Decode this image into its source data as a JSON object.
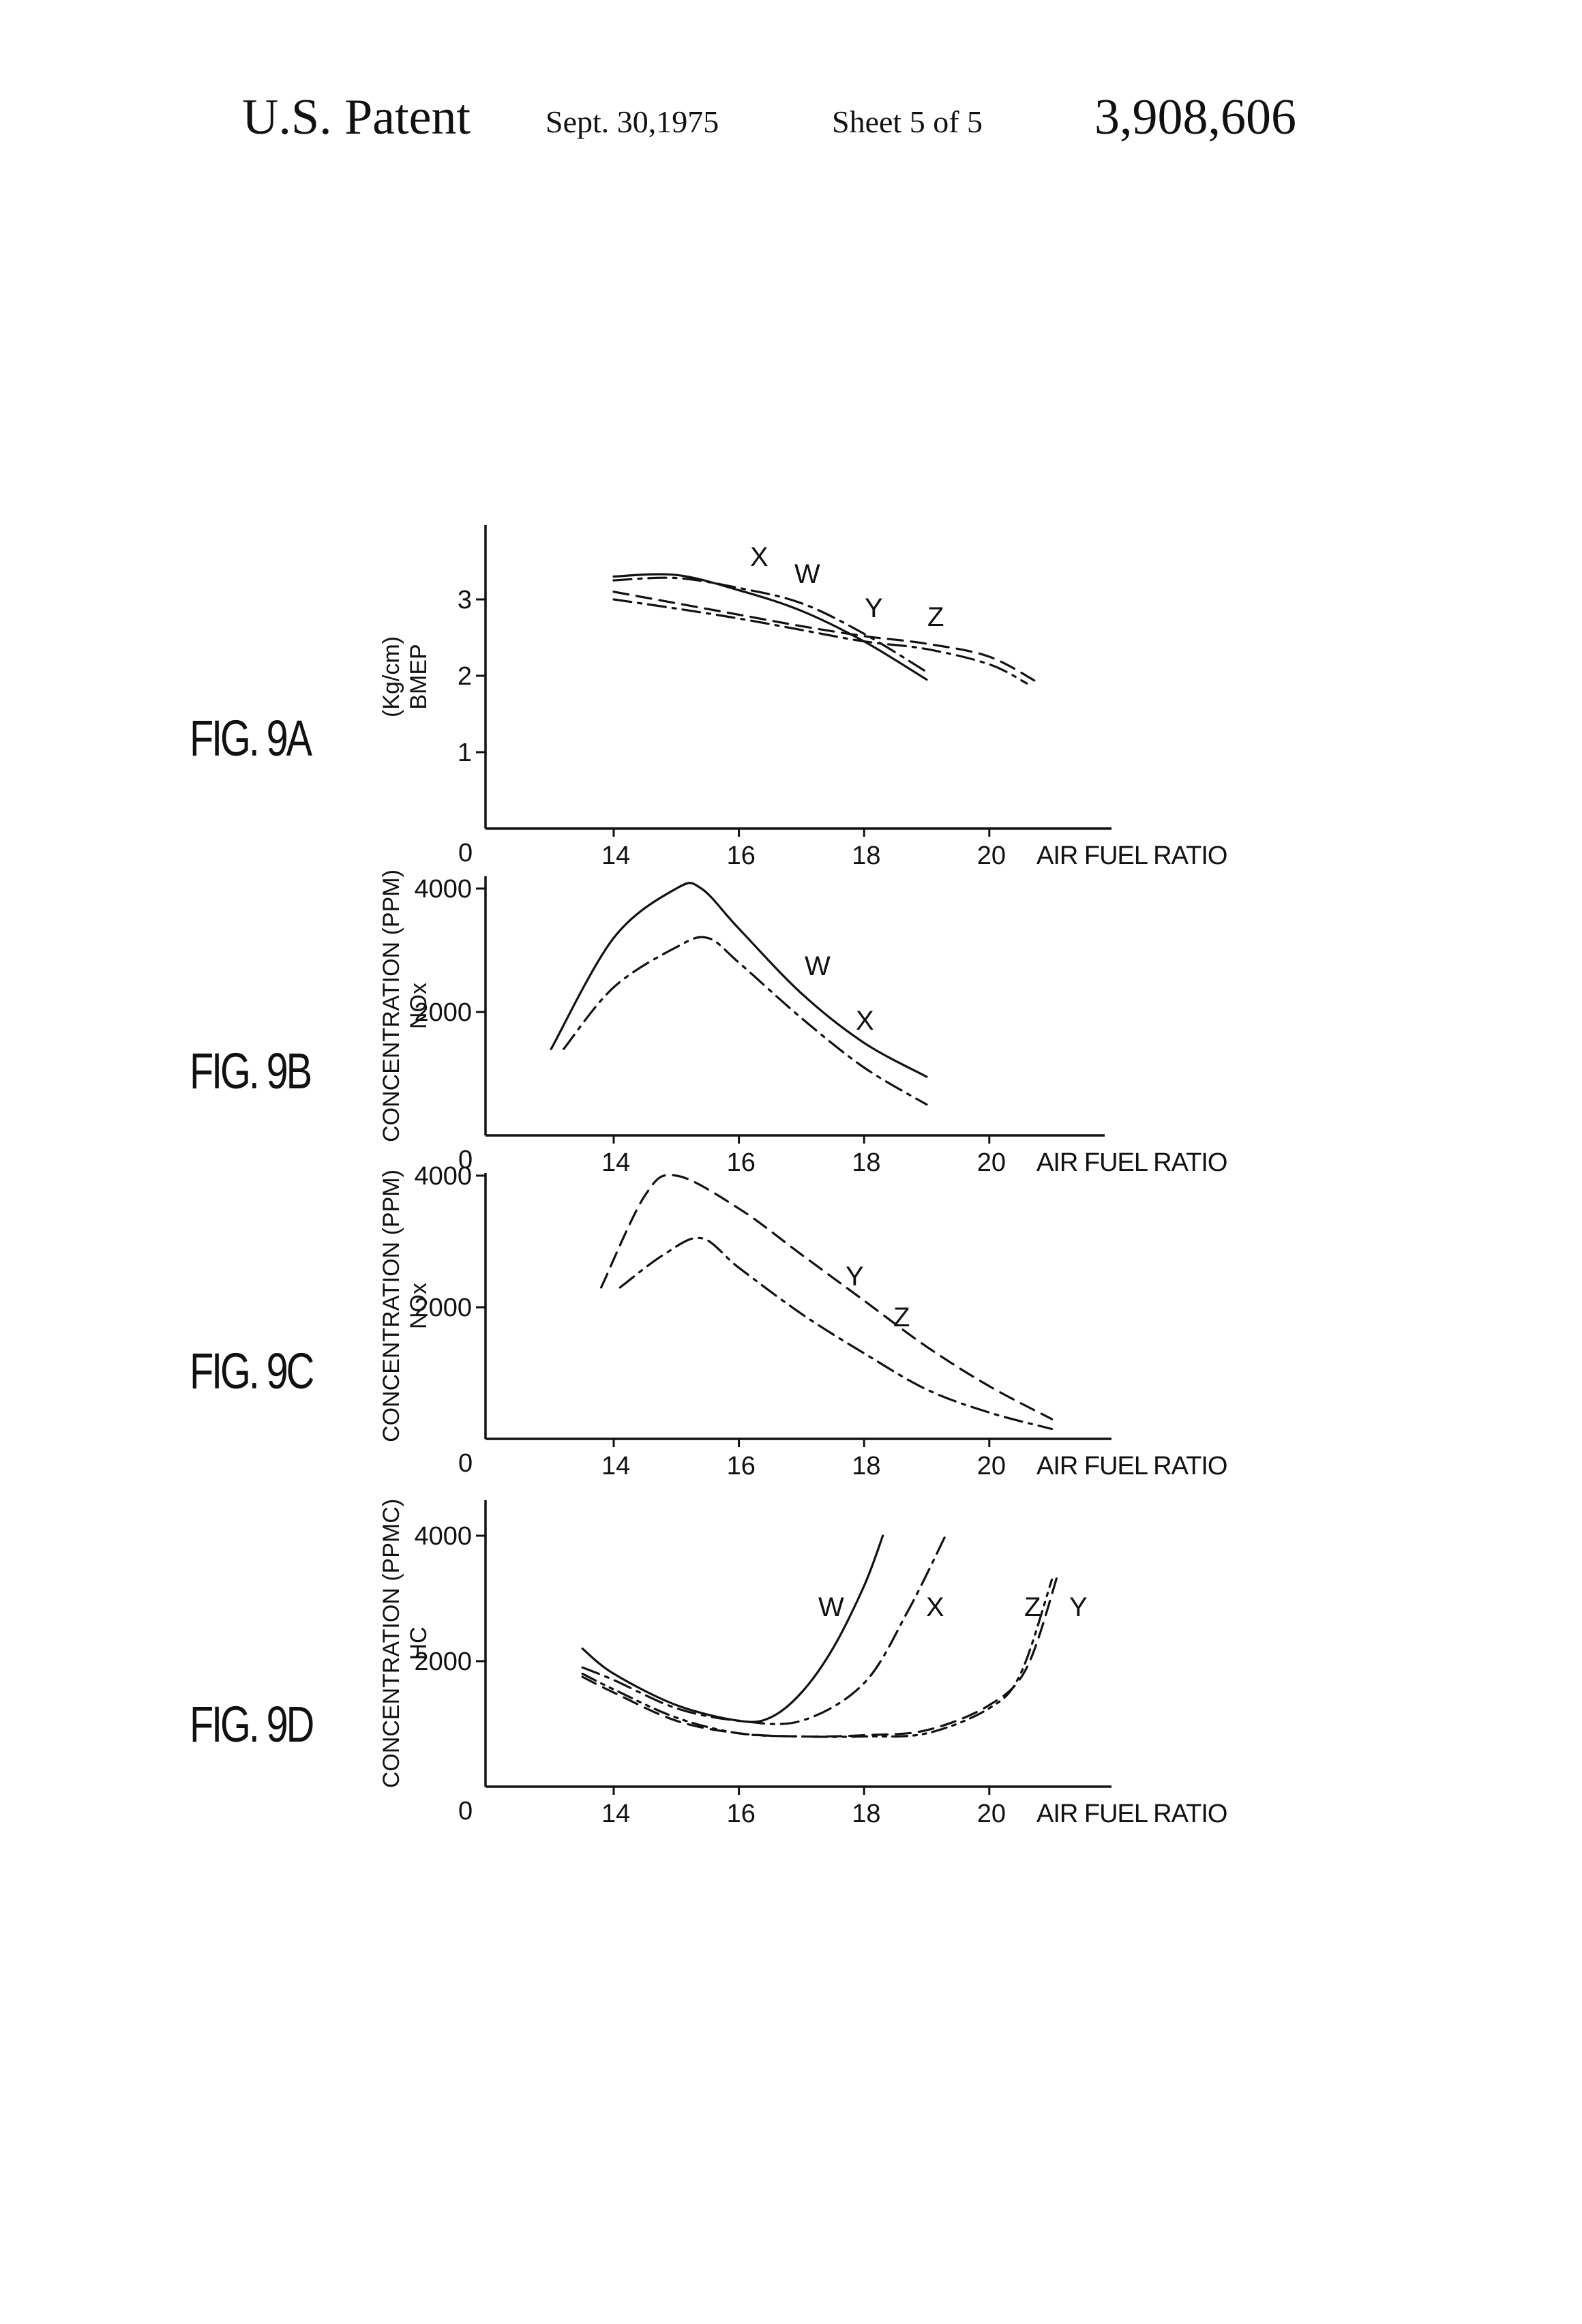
{
  "header": {
    "patent": "U.S. Patent",
    "date": "Sept. 30,1975",
    "sheet": "Sheet 5 of 5",
    "number": "3,908,606"
  },
  "figures": [
    {
      "label": "FIG. 9A",
      "ylabel_line1": "(Kg/cm)",
      "ylabel_line2": "BMEP",
      "xlabel": "AIR FUEL RATIO",
      "origin_label": "0",
      "x_ticks": [
        "14",
        "16",
        "18",
        "20"
      ],
      "y_ticks": [
        "1",
        "2",
        "3"
      ],
      "series_labels": [
        "X",
        "W",
        "Y",
        "Z"
      ]
    },
    {
      "label": "FIG. 9B",
      "ylabel_line1": "CONCENTRATION (PPM)",
      "ylabel_line2": "NOx",
      "xlabel": "AIR FUEL RATIO",
      "origin_label": "0",
      "x_ticks": [
        "14",
        "16",
        "18",
        "20"
      ],
      "y_ticks": [
        "2000",
        "4000"
      ],
      "series_labels": [
        "W",
        "X"
      ]
    },
    {
      "label": "FIG. 9C",
      "ylabel_line1": "CONCENTRATION (PPM)",
      "ylabel_line2": "NOx",
      "xlabel": "AIR FUEL RATIO",
      "origin_label": "0",
      "x_ticks": [
        "14",
        "16",
        "18",
        "20"
      ],
      "y_ticks": [
        "2000",
        "4000"
      ],
      "series_labels": [
        "Y",
        "Z"
      ]
    },
    {
      "label": "FIG. 9D",
      "ylabel_line1": "CONCENTRATION (PPMC)",
      "ylabel_line2": "HC",
      "xlabel": "AIR FUEL RATIO",
      "origin_label": "0",
      "x_ticks": [
        "14",
        "16",
        "18",
        "20"
      ],
      "y_ticks": [
        "2000",
        "4000"
      ],
      "series_labels": [
        "W",
        "X",
        "Z",
        "Y"
      ]
    }
  ],
  "chart_data": [
    {
      "type": "line",
      "figure": "FIG. 9A",
      "xlabel": "AIR FUEL RATIO",
      "ylabel": "BMEP (Kg/cm)",
      "xlim": [
        12,
        22
      ],
      "ylim": [
        0,
        4
      ],
      "series": [
        {
          "name": "X",
          "style": "dash-dot",
          "x": [
            14,
            15,
            16,
            17,
            18,
            19
          ],
          "y": [
            3.25,
            3.28,
            3.15,
            2.95,
            2.55,
            2.05
          ]
        },
        {
          "name": "W",
          "style": "solid",
          "x": [
            14,
            15,
            16,
            17,
            18,
            19
          ],
          "y": [
            3.3,
            3.32,
            3.12,
            2.85,
            2.45,
            1.95
          ]
        },
        {
          "name": "Y",
          "style": "dash-dot",
          "x": [
            14,
            15,
            16,
            17,
            18,
            19,
            20,
            20.6
          ],
          "y": [
            3.0,
            2.88,
            2.75,
            2.6,
            2.45,
            2.35,
            2.15,
            1.9
          ]
        },
        {
          "name": "Z",
          "style": "dashed",
          "x": [
            14,
            15,
            16,
            17,
            18,
            19,
            20,
            20.8
          ],
          "y": [
            3.1,
            2.95,
            2.8,
            2.65,
            2.52,
            2.42,
            2.25,
            1.9
          ]
        }
      ]
    },
    {
      "type": "line",
      "figure": "FIG. 9B",
      "xlabel": "AIR FUEL RATIO",
      "ylabel": "NOx CONCENTRATION (PPM)",
      "xlim": [
        12,
        22
      ],
      "ylim": [
        0,
        4000
      ],
      "series": [
        {
          "name": "W",
          "style": "solid",
          "x": [
            13,
            14,
            15,
            15.4,
            16,
            17,
            18,
            19
          ],
          "y": [
            1400,
            3200,
            4000,
            4000,
            3350,
            2300,
            1500,
            950
          ]
        },
        {
          "name": "X",
          "style": "dash-dot",
          "x": [
            13.2,
            14,
            15,
            15.5,
            16,
            17,
            18,
            19
          ],
          "y": [
            1400,
            2400,
            3050,
            3200,
            2800,
            1900,
            1100,
            500
          ]
        }
      ]
    },
    {
      "type": "line",
      "figure": "FIG. 9C",
      "xlabel": "AIR FUEL RATIO",
      "ylabel": "NOx CONCENTRATION (PPM)",
      "xlim": [
        12,
        22
      ],
      "ylim": [
        0,
        4000
      ],
      "series": [
        {
          "name": "Y",
          "style": "dashed",
          "x": [
            13.8,
            14.5,
            15,
            16,
            17,
            18,
            19,
            20,
            21
          ],
          "y": [
            2300,
            3700,
            4000,
            3500,
            2800,
            2100,
            1400,
            800,
            300
          ]
        },
        {
          "name": "Z",
          "style": "dash-dot",
          "x": [
            14.1,
            14.8,
            15.4,
            16,
            17,
            18,
            19,
            20,
            21
          ],
          "y": [
            2300,
            2800,
            3050,
            2600,
            1900,
            1300,
            750,
            400,
            150
          ]
        }
      ]
    },
    {
      "type": "line",
      "figure": "FIG. 9D",
      "xlabel": "AIR FUEL RATIO",
      "ylabel": "HC CONCENTRATION (PPMC)",
      "xlim": [
        12,
        22
      ],
      "ylim": [
        0,
        4500
      ],
      "series": [
        {
          "name": "W",
          "style": "solid",
          "x": [
            13.5,
            14,
            15,
            16,
            16.5,
            17,
            17.5,
            18,
            18.3
          ],
          "y": [
            2200,
            1800,
            1300,
            1050,
            1100,
            1500,
            2200,
            3200,
            4000
          ]
        },
        {
          "name": "X",
          "style": "dash-dot",
          "x": [
            13.5,
            14,
            15,
            16,
            17,
            18,
            18.7,
            19.3
          ],
          "y": [
            1900,
            1700,
            1250,
            1050,
            1050,
            1650,
            2800,
            4000
          ]
        },
        {
          "name": "Z",
          "style": "dash-dot-dot",
          "x": [
            13.5,
            14,
            15,
            16,
            17,
            18,
            19,
            20,
            20.5,
            21
          ],
          "y": [
            1800,
            1550,
            1100,
            850,
            800,
            800,
            850,
            1250,
            1800,
            3300
          ]
        },
        {
          "name": "Y",
          "style": "dashed",
          "x": [
            13.5,
            14,
            15,
            16,
            17,
            18,
            19,
            20,
            20.6,
            21.1
          ],
          "y": [
            1750,
            1500,
            1050,
            850,
            800,
            820,
            900,
            1300,
            1900,
            3400
          ]
        }
      ]
    }
  ]
}
